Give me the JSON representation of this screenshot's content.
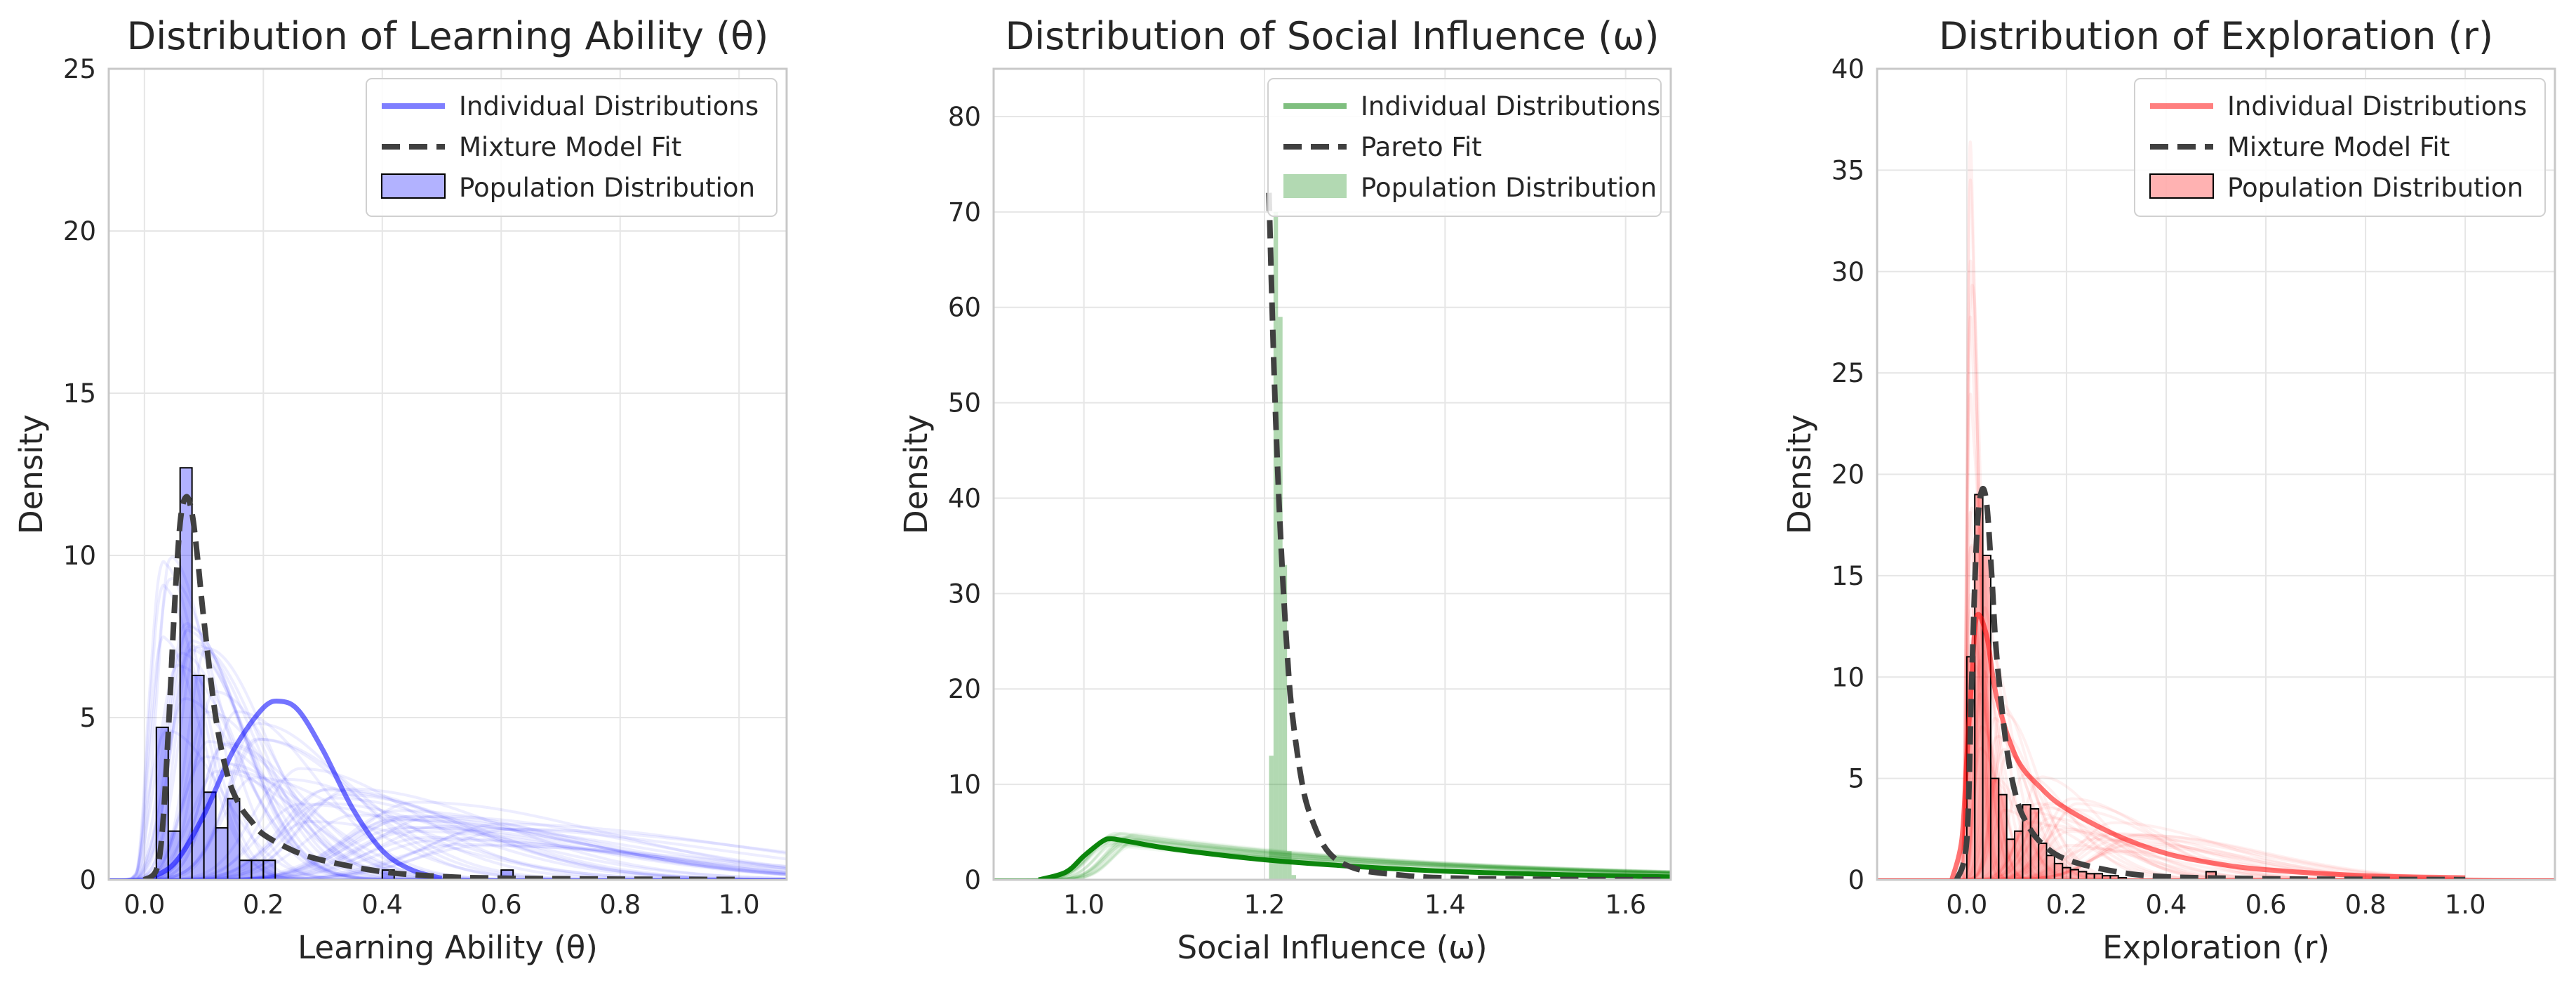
{
  "colors": {
    "blue": "#0000ff",
    "green": "#008000",
    "red": "#ff0000",
    "fit": "#404040"
  },
  "chart_data": [
    {
      "type": "histogram",
      "title": "Distribution of Learning Ability (θ)",
      "xlabel": "Learning Ability (θ)",
      "ylabel": "Density",
      "xlim": [
        -0.06,
        1.08
      ],
      "ylim": [
        0,
        25
      ],
      "xticks": [
        0.0,
        0.2,
        0.4,
        0.6,
        0.8,
        1.0
      ],
      "xtick_labels": [
        "0.0",
        "0.2",
        "0.4",
        "0.6",
        "0.8",
        "1.0"
      ],
      "yticks": [
        0,
        5,
        10,
        15,
        20,
        25
      ],
      "ytick_labels": [
        "0",
        "5",
        "10",
        "15",
        "20",
        "25"
      ],
      "grid": true,
      "legend": {
        "location": "upper right",
        "entries": [
          "Individual Distributions",
          "Mixture Model Fit",
          "Population Distribution"
        ]
      },
      "color": "#0000ff",
      "histogram": {
        "bin_edges": [
          0.02,
          0.04,
          0.06,
          0.08,
          0.1,
          0.12,
          0.14,
          0.16,
          0.18,
          0.2,
          0.22,
          0.24,
          0.26,
          0.28,
          0.3,
          0.32,
          0.34,
          0.36,
          0.38,
          0.4,
          0.42,
          0.44,
          0.46,
          0.48,
          0.5,
          0.52,
          0.54,
          0.56,
          0.58,
          0.6,
          0.62,
          0.64
        ],
        "densities": [
          4.7,
          1.5,
          12.7,
          6.3,
          2.7,
          1.6,
          2.5,
          0.6,
          0.6,
          0.6,
          0,
          0,
          0,
          0,
          0,
          0,
          0,
          0,
          0,
          0.3,
          0,
          0,
          0,
          0,
          0,
          0,
          0,
          0,
          0,
          0.3,
          0
        ]
      },
      "mixture_fit": {
        "x": [
          0.0,
          0.02,
          0.03,
          0.04,
          0.05,
          0.06,
          0.07,
          0.08,
          0.09,
          0.1,
          0.12,
          0.14,
          0.16,
          0.18,
          0.2,
          0.25,
          0.3,
          0.4,
          0.5,
          0.6,
          0.8,
          1.0
        ],
        "y": [
          0.0,
          0.3,
          1.5,
          4.5,
          8.2,
          11.0,
          11.8,
          11.3,
          9.8,
          8.0,
          5.0,
          3.2,
          2.3,
          1.8,
          1.4,
          0.9,
          0.6,
          0.25,
          0.1,
          0.05,
          0.02,
          0.01
        ]
      },
      "highlight_individual": {
        "x": [
          0.0,
          0.05,
          0.1,
          0.15,
          0.2,
          0.23,
          0.26,
          0.3,
          0.35,
          0.4,
          0.45,
          0.5
        ],
        "y": [
          0.0,
          0.5,
          2.0,
          4.0,
          5.3,
          5.5,
          5.2,
          4.0,
          2.2,
          0.9,
          0.3,
          0.05
        ]
      }
    },
    {
      "type": "histogram",
      "title": "Distribution of Social Influence (ω)",
      "xlabel": "Social Influence (ω)",
      "ylabel": "Density",
      "xlim": [
        0.9,
        1.65
      ],
      "ylim": [
        0,
        85
      ],
      "xticks": [
        1.0,
        1.2,
        1.4,
        1.6
      ],
      "xtick_labels": [
        "1.0",
        "1.2",
        "1.4",
        "1.6"
      ],
      "yticks": [
        0,
        10,
        20,
        30,
        40,
        50,
        60,
        70,
        80
      ],
      "ytick_labels": [
        "0",
        "10",
        "20",
        "30",
        "40",
        "50",
        "60",
        "70",
        "80"
      ],
      "grid": true,
      "legend": {
        "location": "upper right",
        "entries": [
          "Individual Distributions",
          "Pareto Fit",
          "Population Distribution"
        ]
      },
      "color": "#008000",
      "histogram": {
        "bin_edges": [
          1.205,
          1.21,
          1.215,
          1.22,
          1.225,
          1.23,
          1.235
        ],
        "densities": [
          13.0,
          70.0,
          59.0,
          33.0,
          3.0,
          0.5
        ]
      },
      "pareto_fit": {
        "x": [
          1.205,
          1.21,
          1.215,
          1.22,
          1.225,
          1.23,
          1.24,
          1.25,
          1.27,
          1.3,
          1.35,
          1.4,
          1.5,
          1.6,
          1.65
        ],
        "y": [
          72.0,
          55.0,
          42.0,
          32.0,
          24.0,
          18.0,
          11.0,
          7.0,
          3.0,
          1.2,
          0.5,
          0.2,
          0.05,
          0.01,
          0.0
        ]
      },
      "highlight_individual": {
        "x": [
          0.95,
          0.98,
          1.0,
          1.02,
          1.03,
          1.05,
          1.1,
          1.2,
          1.3,
          1.4,
          1.5,
          1.6,
          1.65
        ],
        "y": [
          0.0,
          0.8,
          2.5,
          4.0,
          4.3,
          4.0,
          3.2,
          2.1,
          1.4,
          0.9,
          0.6,
          0.4,
          0.3
        ]
      }
    },
    {
      "type": "histogram",
      "title": "Distribution of Exploration (r)",
      "xlabel": "Exploration (r)",
      "ylabel": "Density",
      "xlim": [
        -0.18,
        1.18
      ],
      "ylim": [
        0,
        40
      ],
      "xticks": [
        0.0,
        0.2,
        0.4,
        0.6,
        0.8,
        1.0
      ],
      "xtick_labels": [
        "0.0",
        "0.2",
        "0.4",
        "0.6",
        "0.8",
        "1.0"
      ],
      "yticks": [
        0,
        5,
        10,
        15,
        20,
        25,
        30,
        35,
        40
      ],
      "ytick_labels": [
        "0",
        "5",
        "10",
        "15",
        "20",
        "25",
        "30",
        "35",
        "40"
      ],
      "grid": true,
      "legend": {
        "location": "upper right",
        "entries": [
          "Individual Distributions",
          "Mixture Model Fit",
          "Population Distribution"
        ]
      },
      "color": "#ff0000",
      "histogram": {
        "bin_edges": [
          0.0,
          0.016,
          0.032,
          0.048,
          0.064,
          0.08,
          0.096,
          0.112,
          0.128,
          0.144,
          0.16,
          0.176,
          0.192,
          0.208,
          0.224,
          0.24,
          0.256,
          0.272,
          0.288,
          0.304,
          0.32
        ],
        "densities": [
          11.0,
          19.0,
          16.0,
          5.0,
          4.2,
          2.0,
          2.4,
          3.7,
          3.5,
          1.8,
          1.2,
          0.8,
          0.6,
          0.5,
          0.4,
          0.3,
          0.3,
          0.2,
          0.2,
          0.1
        ]
      },
      "extra_bars": [
        {
          "x0": 0.48,
          "x1": 0.5,
          "density": 0.4
        }
      ],
      "mixture_fit": {
        "x": [
          -0.02,
          0.0,
          0.01,
          0.02,
          0.03,
          0.04,
          0.05,
          0.06,
          0.08,
          0.1,
          0.12,
          0.15,
          0.2,
          0.3,
          0.4,
          0.6,
          0.8,
          1.0
        ],
        "y": [
          0.0,
          2.0,
          10.0,
          17.0,
          19.2,
          18.5,
          15.0,
          11.0,
          6.5,
          4.0,
          2.8,
          1.8,
          1.0,
          0.4,
          0.15,
          0.05,
          0.02,
          0.01
        ]
      },
      "highlight_individual": {
        "x": [
          -0.03,
          -0.01,
          0.0,
          0.01,
          0.02,
          0.04,
          0.06,
          0.1,
          0.15,
          0.2,
          0.3,
          0.4,
          0.5,
          0.6,
          0.8,
          1.0
        ],
        "y": [
          0.0,
          2.0,
          6.0,
          10.0,
          13.0,
          12.0,
          9.0,
          6.0,
          4.5,
          3.5,
          2.2,
          1.3,
          0.8,
          0.5,
          0.2,
          0.1
        ]
      }
    }
  ]
}
